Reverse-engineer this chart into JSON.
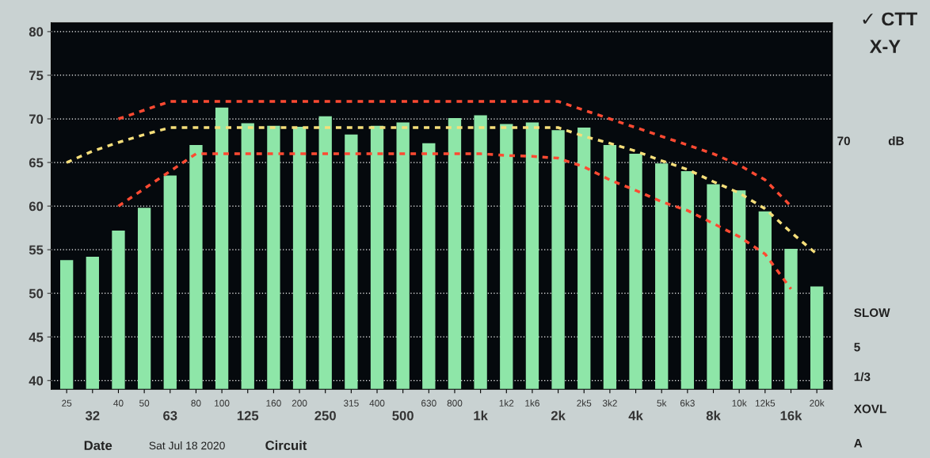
{
  "chart_data": {
    "type": "bar",
    "categories": [
      "25",
      "32",
      "40",
      "50",
      "63",
      "80",
      "100",
      "125",
      "160",
      "200",
      "250",
      "315",
      "400",
      "500",
      "630",
      "800",
      "1k",
      "1k2",
      "1k6",
      "2k",
      "2k5",
      "3k2",
      "4k",
      "5k",
      "6k3",
      "8k",
      "10k",
      "12k5",
      "16k",
      "20k"
    ],
    "series": [
      {
        "color": "#8ee6a8",
        "values": [
          53.8,
          54.2,
          57.2,
          59.8,
          63.5,
          67.0,
          71.3,
          69.5,
          69.2,
          69.1,
          70.3,
          68.2,
          69.2,
          69.6,
          67.2,
          70.1,
          70.4,
          69.4,
          69.6,
          68.7,
          69.0,
          67.0,
          66.0,
          64.9,
          64.0,
          62.5,
          61.8,
          59.4,
          55.1,
          50.8
        ]
      },
      {
        "type": "line",
        "color": "#ff4a32",
        "line_style": "dashed",
        "values": [
          null,
          null,
          70,
          71,
          72,
          72,
          72,
          72,
          72,
          72,
          72,
          72,
          72,
          72,
          72,
          72,
          72,
          72,
          72,
          72,
          71,
          70,
          69,
          68,
          67,
          66,
          64.7,
          63,
          60,
          null
        ]
      },
      {
        "type": "line",
        "color": "#f5de7a",
        "line_style": "dashed",
        "values": [
          65,
          66.3,
          67.3,
          68.2,
          69,
          69,
          69,
          69,
          69,
          69,
          69,
          69,
          69,
          69,
          69,
          69,
          69,
          69,
          69,
          69,
          68,
          67.2,
          66.3,
          65.2,
          64.2,
          62.8,
          61.5,
          59.7,
          57,
          54.5
        ]
      },
      {
        "type": "line",
        "color": "#ff4a32",
        "line_style": "dashed",
        "values": [
          null,
          null,
          60,
          62,
          64,
          66,
          66,
          66,
          66,
          66,
          66,
          66,
          66,
          66,
          66,
          66,
          66,
          65.8,
          65.7,
          65.5,
          64.5,
          63,
          61.8,
          60.5,
          59.5,
          58,
          56.5,
          54.5,
          50.5,
          null
        ]
      }
    ],
    "ylim": [
      39,
      81
    ],
    "yticks": [
      40,
      45,
      50,
      55,
      60,
      65,
      70,
      75,
      80
    ],
    "grid": "y",
    "annotations": [
      "✓ CTT",
      "X-Y",
      "70",
      "dB",
      "SLOW",
      "5",
      "1/3",
      "XOVL",
      "A",
      "Date",
      "Sat Jul 18 2020",
      "Circuit"
    ]
  }
}
